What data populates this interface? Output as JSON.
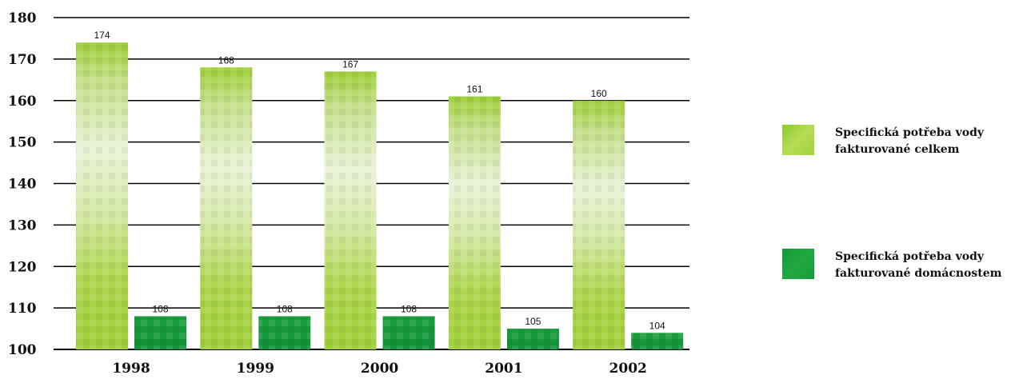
{
  "chart_data": {
    "type": "bar",
    "categories": [
      "1998",
      "1999",
      "2000",
      "2001",
      "2002"
    ],
    "series": [
      {
        "name": "Specifická potřeba vody fakturované celkem",
        "values": [
          174,
          168,
          167,
          161,
          160
        ],
        "color": "#a6d63a"
      },
      {
        "name": "Specifická potřeba vody fakturované domácnostem",
        "values": [
          108,
          108,
          108,
          105,
          104
        ],
        "color": "#17a33e"
      }
    ],
    "data_labels": [
      [
        "174",
        "168",
        "167",
        "161",
        "160"
      ],
      [
        "108",
        "108",
        "108",
        "105",
        "104"
      ]
    ],
    "yticks": [
      "100",
      "110",
      "120",
      "130",
      "140",
      "150",
      "160",
      "170",
      "180"
    ],
    "ylim": [
      100,
      180
    ],
    "grid": true,
    "legend_position": "right",
    "title": "",
    "xlabel": "",
    "ylabel": ""
  },
  "legend": {
    "items": [
      {
        "line1": "Specifická potřeba vody",
        "line2": "fakturované celkem",
        "color": "#a6d63a"
      },
      {
        "line1": "Specifická potřeba vody",
        "line2": "fakturované domácnostem",
        "color": "#17a33e"
      }
    ]
  }
}
